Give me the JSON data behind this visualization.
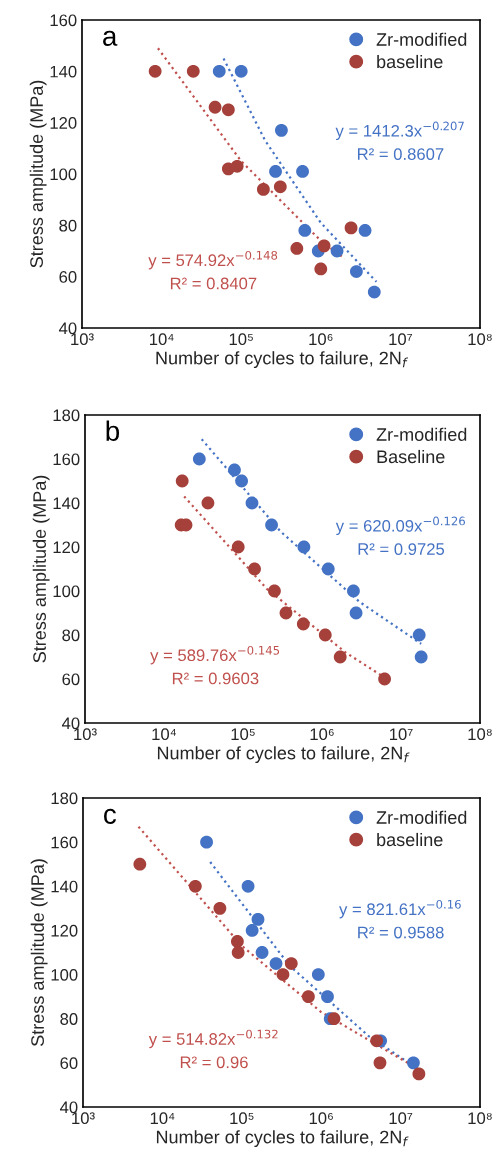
{
  "chart_data": [
    {
      "type": "scatter",
      "xlabel": "Number of cycles to failure, 2N$_{f}$",
      "ylabel": "Stress amplitude (MPa)",
      "log": "x",
      "xlim": [
        1000,
        100000000
      ],
      "ylim": [
        40,
        160
      ],
      "xticks": [
        {
          "value": 1000,
          "label": "10³"
        },
        {
          "value": 10000,
          "label": "10⁴"
        },
        {
          "value": 100000,
          "label": "10⁵"
        },
        {
          "value": 1000000,
          "label": "10⁶"
        },
        {
          "value": 10000000,
          "label": "10⁷"
        },
        {
          "value": 100000000,
          "label": "10⁸"
        }
      ],
      "yticks": [
        40,
        60,
        80,
        100,
        120,
        140,
        160
      ],
      "grid": false,
      "legend": "top right",
      "marker": "circle",
      "annotations": [
        "a",
        "y = 1412.3x$^{−0.207}$",
        "R² = 0.8607",
        "y = 574.92x$^{−0.148}$",
        "R² = 0.8407"
      ],
      "series": [
        {
          "name": "Zr-modified",
          "color": "#4472c4",
          "x": [
            53000,
            100000,
            320000,
            270000,
            590000,
            630000,
            930000,
            1600000,
            3600000,
            2800000,
            4700000
          ],
          "values": [
            140,
            140,
            117,
            101,
            101,
            78,
            70,
            70,
            78,
            62,
            54
          ]
        },
        {
          "name": "baseline",
          "color": "#a5403a",
          "x": [
            8300,
            25000,
            47000,
            69000,
            69000,
            89000,
            190000,
            310000,
            500000,
            1100000,
            1000000,
            2400000
          ],
          "values": [
            140,
            140,
            126,
            125,
            102,
            103,
            94,
            95,
            71,
            72,
            63,
            79
          ]
        },
        {
          "type": "line",
          "color": "#4472c4",
          "line_style": "dotted",
          "marker": "none",
          "x": [
            60000,
            200000,
            1000000,
            5000000
          ],
          "values": [
            145,
            113,
            81,
            58
          ]
        },
        {
          "type": "line",
          "color": "#c0504d",
          "line_style": "dotted",
          "marker": "none",
          "x": [
            9000,
            100000,
            1000000,
            2000000
          ],
          "values": [
            149,
            105,
            74,
            67
          ]
        }
      ]
    },
    {
      "type": "scatter",
      "xlabel": "Number of cycles to failure, 2N$_{f}$",
      "ylabel": "Stress amplitude (MPa)",
      "log": "x",
      "xlim": [
        1000,
        100000000
      ],
      "ylim": [
        40,
        180
      ],
      "xticks": [
        {
          "value": 1000,
          "label": "10³"
        },
        {
          "value": 10000,
          "label": "10⁴"
        },
        {
          "value": 100000,
          "label": "10⁵"
        },
        {
          "value": 1000000,
          "label": "10⁶"
        },
        {
          "value": 10000000,
          "label": "10⁷"
        },
        {
          "value": 100000000,
          "label": "10⁸"
        }
      ],
      "yticks": [
        40,
        60,
        80,
        100,
        120,
        140,
        160,
        180
      ],
      "grid": false,
      "legend": "top right",
      "marker": "circle",
      "annotations": [
        "b",
        "y = 620.09x$^{−0.126}$",
        "R² = 0.9725",
        "y = 589.76x$^{−0.145}$",
        "R² = 0.9603"
      ],
      "series": [
        {
          "name": "Zr-modified",
          "color": "#4472c4",
          "x": [
            28000,
            78000,
            96000,
            130000,
            230000,
            590000,
            1200000,
            2500000,
            2700000,
            17000000,
            18000000
          ],
          "values": [
            160,
            155,
            150,
            140,
            130,
            120,
            110,
            100,
            90,
            80,
            70
          ]
        },
        {
          "name": "Baseline",
          "color": "#a5403a",
          "x": [
            17000,
            16500,
            19000,
            36000,
            87000,
            140000,
            250000,
            350000,
            580000,
            1100000,
            1700000,
            6200000
          ],
          "values": [
            150,
            130,
            130,
            140,
            120,
            110,
            100,
            90,
            85,
            80,
            70,
            60
          ]
        },
        {
          "type": "line",
          "color": "#4472c4",
          "line_style": "dotted",
          "marker": "none",
          "x": [
            30000,
            300000,
            3000000,
            18000000
          ],
          "values": [
            169,
            127,
            95,
            76
          ]
        },
        {
          "type": "line",
          "color": "#c0504d",
          "line_style": "dotted",
          "marker": "none",
          "x": [
            18000,
            200000,
            2000000,
            6000000
          ],
          "values": [
            143,
            101,
            72,
            61
          ]
        }
      ]
    },
    {
      "type": "scatter",
      "xlabel": "Number of cycles to failure, 2N$_{f}$",
      "ylabel": "Stress amplitude (MPa)",
      "log": "x",
      "xlim": [
        1000,
        100000000
      ],
      "ylim": [
        40,
        180
      ],
      "xticks": [
        {
          "value": 1000,
          "label": "10³"
        },
        {
          "value": 10000,
          "label": "10⁴"
        },
        {
          "value": 100000,
          "label": "10⁵"
        },
        {
          "value": 1000000,
          "label": "10⁶"
        },
        {
          "value": 10000000,
          "label": "10⁷"
        },
        {
          "value": 100000000,
          "label": "10⁸"
        }
      ],
      "yticks": [
        40,
        60,
        80,
        100,
        120,
        140,
        160,
        180
      ],
      "grid": false,
      "legend": "top right",
      "marker": "circle",
      "annotations": [
        "c",
        "y = 821.61x$^{−0.16}$",
        "R² = 0.9588",
        "y = 514.82x$^{−0.132}$",
        "R² = 0.96"
      ],
      "series": [
        {
          "name": "Zr-modified",
          "color": "#4472c4",
          "x": [
            36000,
            120000,
            160000,
            135000,
            180000,
            270000,
            920000,
            1200000,
            1300000,
            5600000,
            14500000
          ],
          "values": [
            160,
            140,
            125,
            120,
            110,
            105,
            100,
            90,
            80,
            70,
            60
          ]
        },
        {
          "name": "baseline",
          "color": "#a5403a",
          "x": [
            5200,
            26000,
            53000,
            88000,
            90000,
            330000,
            420000,
            690000,
            1450000,
            5000000,
            5500000,
            17000000
          ],
          "values": [
            150,
            140,
            130,
            115,
            110,
            100,
            105,
            90,
            80,
            70,
            60,
            55
          ]
        },
        {
          "type": "line",
          "color": "#4472c4",
          "line_style": "dotted",
          "marker": "none",
          "x": [
            40000,
            400000,
            4000000,
            14000000
          ],
          "values": [
            151,
            104,
            72,
            59
          ]
        },
        {
          "type": "line",
          "color": "#c0504d",
          "line_style": "dotted",
          "marker": "none",
          "x": [
            5000,
            100000,
            1000000,
            17000000
          ],
          "values": [
            167,
            113,
            83,
            57
          ]
        }
      ]
    }
  ]
}
